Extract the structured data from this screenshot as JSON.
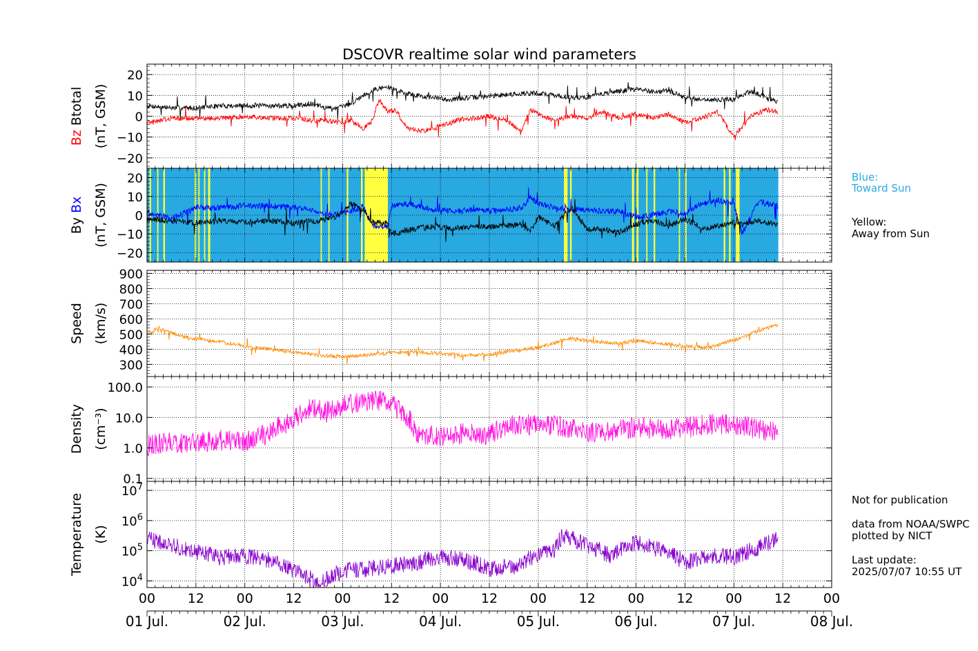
{
  "chart_data": {
    "type": "line",
    "title": "DSCOVR realtime solar wind parameters",
    "x_axis": {
      "unit": "hours since 01 Jul. 00 UT",
      "range": [
        0,
        168
      ],
      "hour_ticks": [
        "00",
        "12",
        "00",
        "12",
        "00",
        "12",
        "00",
        "12",
        "00",
        "12",
        "00",
        "12",
        "00",
        "12",
        "00"
      ],
      "day_labels": [
        "01 Jul.",
        "02 Jul.",
        "03 Jul.",
        "04 Jul.",
        "05 Jul.",
        "06 Jul.",
        "07 Jul.",
        "08 Jul."
      ],
      "data_end_hour": 154.9
    },
    "panels": [
      {
        "id": "btotal_bz",
        "ylabel_parts": [
          "Bz",
          "Btotal"
        ],
        "ylabel_unit": "(nT, GSM)",
        "ylim": [
          -25,
          25
        ],
        "yticks": [
          "20",
          "10",
          "0",
          "−10",
          "−20"
        ],
        "yticks_values": [
          20,
          10,
          0,
          -10,
          -20
        ],
        "series": [
          {
            "name": "Btotal",
            "color": "#000000",
            "x": [
              0,
              6,
              12,
              18,
              24,
              30,
              36,
              40,
              44,
              47,
              50,
              53,
              56,
              59,
              62,
              66,
              70,
              74,
              80,
              86,
              92,
              96,
              100,
              104,
              108,
              112,
              116,
              120,
              124,
              128,
              132,
              136,
              140,
              144,
              148,
              152,
              154.9
            ],
            "y": [
              5,
              4,
              4,
              5,
              5,
              5,
              5,
              6,
              4,
              4,
              6,
              10,
              13,
              14,
              12,
              10,
              9,
              8,
              9,
              10,
              11,
              11,
              10,
              9,
              9,
              11,
              12,
              13,
              12,
              12,
              9,
              8,
              8,
              8,
              12,
              9,
              7
            ]
          },
          {
            "name": "Bz",
            "color": "#ff0000",
            "x": [
              0,
              6,
              12,
              18,
              24,
              30,
              36,
              40,
              44,
              47,
              50,
              53,
              55,
              57,
              59,
              61,
              64,
              68,
              72,
              76,
              80,
              84,
              88,
              92,
              94,
              96,
              100,
              104,
              108,
              112,
              116,
              120,
              124,
              128,
              132,
              136,
              140,
              144,
              148,
              152,
              154.9
            ],
            "y": [
              -3,
              -1,
              -1,
              -1,
              0,
              -1,
              -1,
              -2,
              -2,
              -3,
              -2,
              -6,
              -3,
              8,
              2,
              3,
              -6,
              -7,
              -5,
              -2,
              -1,
              0,
              -2,
              -7,
              3,
              1,
              -2,
              0,
              -1,
              2,
              -1,
              1,
              -1,
              1,
              -3,
              -1,
              2,
              -10,
              0,
              3,
              2
            ]
          }
        ]
      },
      {
        "id": "by_bx",
        "ylabel_parts": [
          "By",
          "Bx"
        ],
        "ylabel_unit": "(nT, GSM)",
        "ylim": [
          -25,
          25
        ],
        "yticks": [
          "20",
          "10",
          "0",
          "−10",
          "−20"
        ],
        "yticks_values": [
          20,
          10,
          0,
          -10,
          -20
        ],
        "sector_background": {
          "toward_color": "#29a9e1",
          "away_color": "#ffff3f",
          "away_intervals_hours": [
            [
              0.6,
              1.0
            ],
            [
              2.5,
              2.8
            ],
            [
              4.0,
              4.4
            ],
            [
              11.7,
              12.1
            ],
            [
              12.6,
              12.9
            ],
            [
              14.0,
              14.3
            ],
            [
              15.0,
              15.5
            ],
            [
              42.6,
              42.9
            ],
            [
              44.5,
              44.8
            ],
            [
              49.0,
              49.4
            ],
            [
              52.5,
              52.9
            ],
            [
              53.4,
              59.1
            ],
            [
              102.3,
              103.2
            ],
            [
              103.8,
              104.2
            ],
            [
              119.0,
              119.5
            ],
            [
              120.1,
              120.6
            ],
            [
              122.5,
              122.8
            ],
            [
              124.3,
              124.7
            ],
            [
              130.5,
              130.8
            ],
            [
              132.0,
              132.4
            ],
            [
              141.5,
              141.9
            ],
            [
              142.8,
              143.2
            ],
            [
              144.5,
              145.4
            ]
          ]
        },
        "series": [
          {
            "name": "Bx",
            "color": "#0000ff",
            "x": [
              0,
              6,
              12,
              18,
              24,
              30,
              36,
              42,
              46,
              50,
              53,
              55,
              56,
              59,
              60,
              64,
              70,
              76,
              80,
              86,
              92,
              94,
              96,
              100,
              104,
              108,
              112,
              116,
              120,
              124,
              128,
              132,
              136,
              140,
              144,
              146,
              150,
              154.9
            ],
            "y": [
              2,
              -2,
              4,
              4,
              5,
              5,
              4,
              2,
              0,
              2,
              5,
              -5,
              -6,
              -6,
              5,
              6,
              3,
              2,
              3,
              2,
              4,
              9,
              6,
              4,
              3,
              3,
              2,
              2,
              -1,
              0,
              2,
              1,
              6,
              8,
              6,
              -10,
              7,
              5
            ]
          },
          {
            "name": "By",
            "color": "#000000",
            "x": [
              0,
              6,
              12,
              18,
              24,
              30,
              36,
              42,
              46,
              50,
              53,
              55,
              56,
              59,
              60,
              64,
              70,
              76,
              80,
              86,
              92,
              94,
              96,
              100,
              104,
              108,
              112,
              116,
              120,
              124,
              128,
              132,
              136,
              140,
              144,
              146,
              150,
              154.9
            ],
            "y": [
              -2,
              -3,
              -4,
              -3,
              -4,
              -3,
              -4,
              -3,
              -1,
              6,
              3,
              -3,
              -4,
              -4,
              -10,
              -8,
              -6,
              -7,
              -6,
              -6,
              -5,
              -9,
              -1,
              -6,
              4,
              -7,
              -8,
              -9,
              -5,
              -3,
              -6,
              -2,
              -7,
              -6,
              -4,
              -5,
              -3,
              -5
            ]
          }
        ],
        "annotations": [
          {
            "text": "Blue:",
            "color": "#29a9e1"
          },
          {
            "text": "Toward Sun",
            "color": "#29a9e1"
          },
          {
            "text": "Yellow:",
            "color": "#000000"
          },
          {
            "text": "Away from Sun",
            "color": "#000000"
          }
        ]
      },
      {
        "id": "speed",
        "ylabel_parts": [
          "Speed"
        ],
        "ylabel_unit": "(km/s)",
        "ylim": [
          220,
          920
        ],
        "yticks": [
          "900",
          "800",
          "700",
          "600",
          "500",
          "400",
          "300"
        ],
        "yticks_values": [
          900,
          800,
          700,
          600,
          500,
          400,
          300
        ],
        "series": [
          {
            "name": "Speed",
            "color": "#ff8c00",
            "x": [
              0,
              3,
              6,
              8,
              9,
              12,
              18,
              24,
              30,
              36,
              42,
              48,
              54,
              60,
              66,
              72,
              78,
              84,
              90,
              96,
              100,
              102,
              104,
              110,
              116,
              120,
              126,
              132,
              138,
              144,
              150,
              154.9
            ],
            "y": [
              500,
              540,
              510,
              490,
              480,
              470,
              450,
              420,
              400,
              380,
              360,
              350,
              360,
              375,
              385,
              370,
              360,
              365,
              390,
              410,
              440,
              460,
              470,
              450,
              440,
              455,
              440,
              420,
              410,
              460,
              520,
              560
            ]
          }
        ]
      },
      {
        "id": "density",
        "ylabel_parts": [
          "Density"
        ],
        "ylabel_unit": "(cm⁻³)",
        "scale": "log",
        "ylim": [
          0.08,
          220
        ],
        "yticks": [
          "100.0",
          "10.0",
          "1.0",
          "0.1"
        ],
        "yticks_values": [
          100,
          10,
          1,
          0.1
        ],
        "series": [
          {
            "name": "Density",
            "color": "#ff10e0",
            "x": [
              0,
              6,
              12,
              18,
              24,
              30,
              36,
              40,
              44,
              48,
              52,
              56,
              60,
              66,
              72,
              78,
              84,
              90,
              96,
              102,
              108,
              114,
              120,
              126,
              132,
              138,
              144,
              150,
              154.9
            ],
            "y": [
              1.2,
              1.5,
              1.5,
              1.8,
              1.6,
              3,
              8,
              20,
              15,
              25,
              30,
              40,
              25,
              3,
              2.5,
              3,
              2.5,
              6,
              6,
              5,
              3,
              3.5,
              5,
              4,
              4.5,
              6,
              6,
              4,
              3
            ]
          }
        ]
      },
      {
        "id": "temperature",
        "ylabel_parts": [
          "Temperature"
        ],
        "ylabel_unit": "(K)",
        "scale": "log",
        "ylim": [
          6000,
          20000000
        ],
        "yticks_values": [
          10000000,
          1000000,
          100000,
          10000
        ],
        "series": [
          {
            "name": "Temperature",
            "color": "#8800cc",
            "x": [
              0,
              6,
              12,
              18,
              24,
              30,
              36,
              42,
              48,
              54,
              60,
              66,
              72,
              78,
              84,
              90,
              96,
              100,
              102,
              104,
              108,
              114,
              120,
              126,
              132,
              138,
              144,
              150,
              154.9
            ],
            "y": [
              250000,
              150000,
              90000,
              60000,
              70000,
              50000,
              20000,
              8000,
              20000,
              25000,
              30000,
              40000,
              60000,
              50000,
              25000,
              30000,
              70000,
              100000,
              300000,
              250000,
              150000,
              60000,
              180000,
              100000,
              40000,
              70000,
              60000,
              120000,
              250000
            ]
          }
        ]
      }
    ],
    "side_notes": [
      "Not for publication",
      "data from NOAA/SWPC",
      "plotted by NICT",
      "Last update:",
      "2025/07/07 10:55 UT"
    ]
  }
}
